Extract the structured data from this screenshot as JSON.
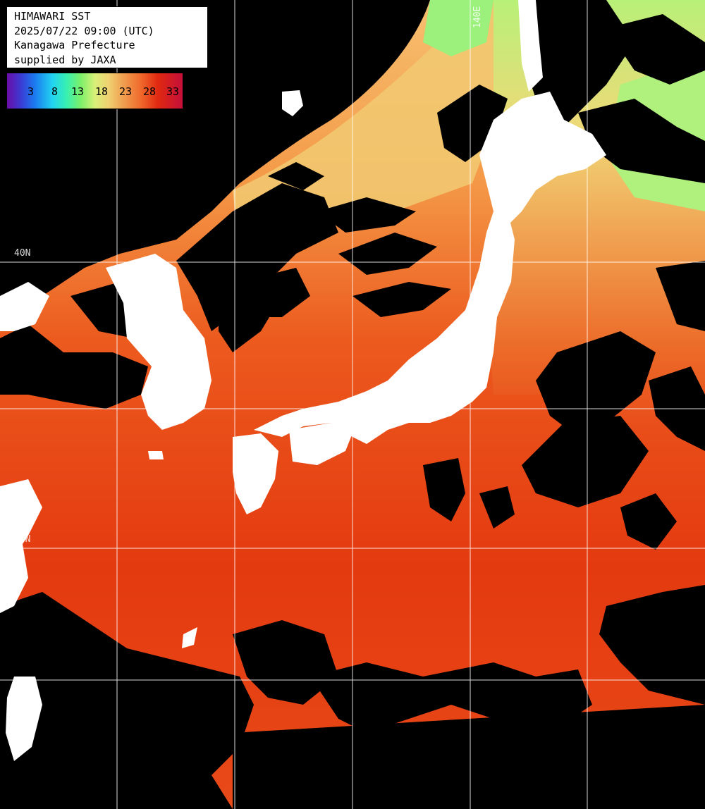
{
  "info": {
    "title": "HIMAWARI SST",
    "datetime": "2025/07/22 09:00 (UTC)",
    "region": "Kanagawa Prefecture",
    "credit": "supplied by JAXA"
  },
  "colorbar": {
    "labels": [
      "3",
      "8",
      "13",
      "18",
      "23",
      "28",
      "33"
    ],
    "colors": [
      "#6a0da8",
      "#1a7cf0",
      "#22d4f0",
      "#7cf06a",
      "#f0d070",
      "#f06a2c",
      "#c40f3a"
    ]
  },
  "grid": {
    "lon_label": "140E",
    "lat_label": "40N",
    "lat_label_low": "30N"
  },
  "colors": {
    "land": "#ffffff",
    "cloud": "#000000",
    "warm_sea": "#e83a14",
    "cool_sea": "#f0b058",
    "cold_sea": "#a8f070",
    "grid": "#ffffff"
  }
}
